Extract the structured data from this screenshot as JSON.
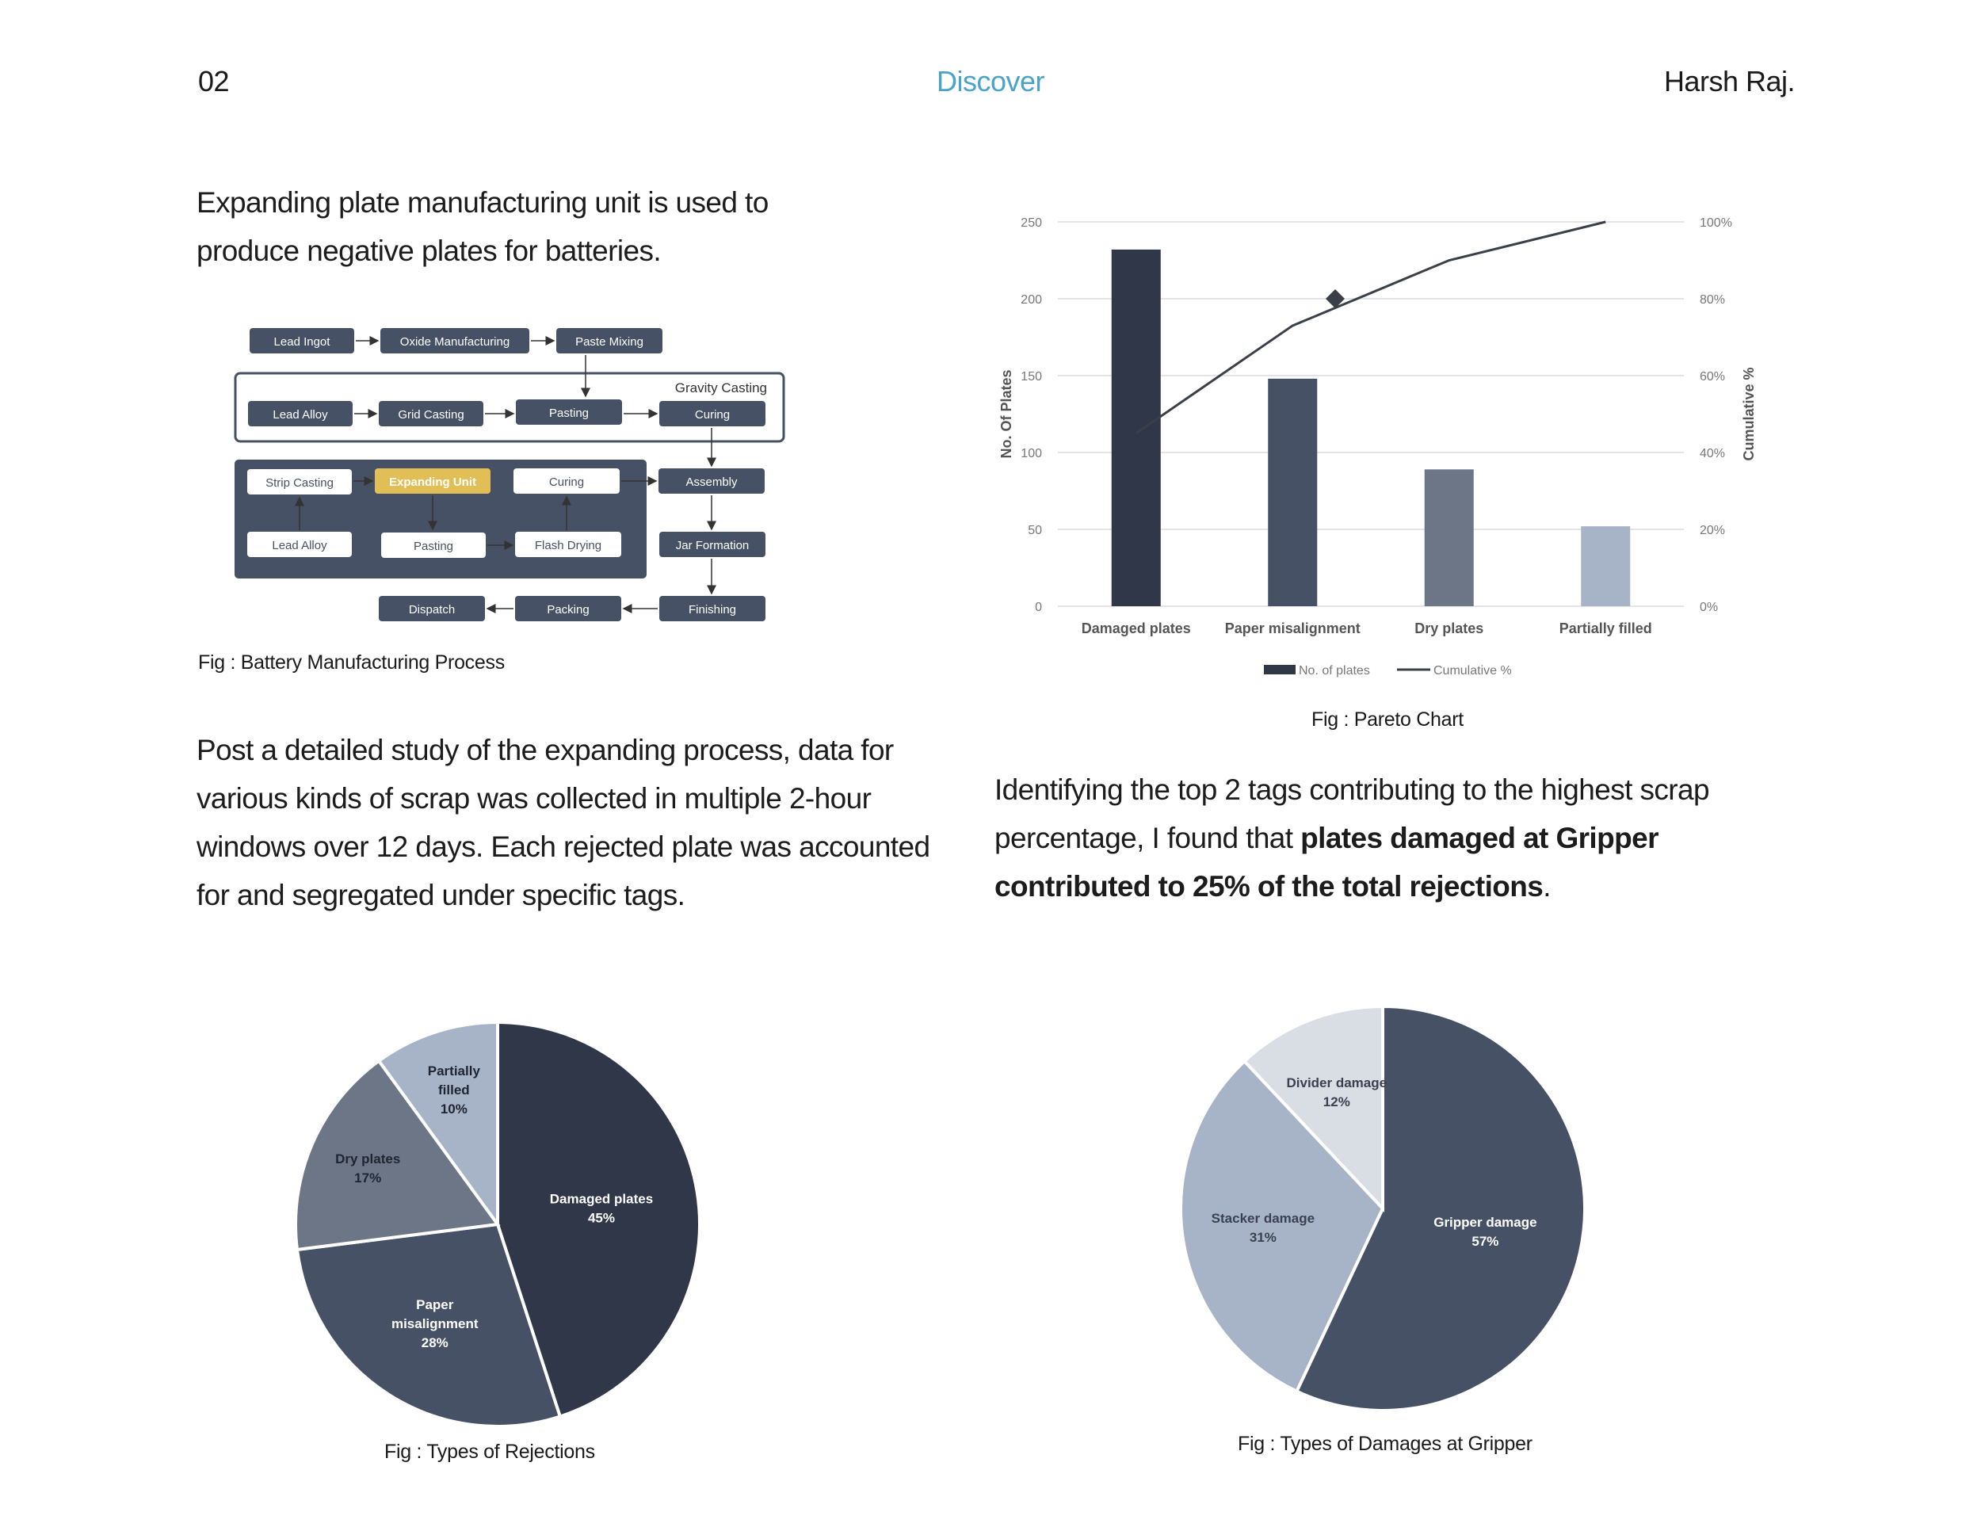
{
  "header": {
    "page_number": "02",
    "section": "Discover",
    "author": "Harsh Raj."
  },
  "intro": {
    "text": "Expanding plate manufacturing unit is used to produce negative plates for batteries."
  },
  "process_diagram": {
    "caption": "Fig : Battery Manufacturing Process",
    "group_label": "Gravity Casting",
    "nodes": {
      "lead_ingot": "Lead Ingot",
      "oxide_manufacturing": "Oxide Manufacturing",
      "paste_mixing": "Paste Mixing",
      "lead_alloy_top": "Lead Alloy",
      "grid_casting": "Grid Casting",
      "pasting_top": "Pasting",
      "curing_top": "Curing",
      "strip_casting": "Strip Casting",
      "expanding_unit": "Expanding Unit",
      "curing_mid": "Curing",
      "assembly": "Assembly",
      "lead_alloy_bottom": "Lead Alloy",
      "pasting_bottom": "Pasting",
      "flash_drying": "Flash Drying",
      "jar_formation": "Jar Formation",
      "dispatch": "Dispatch",
      "packing": "Packing",
      "finishing": "Finishing"
    }
  },
  "study": {
    "text": "Post a detailed study of the expanding process, data for various kinds of scrap was collected in multiple 2-hour windows over 12 days. Each rejected plate was accounted for and segregated under specific tags."
  },
  "finding": {
    "lead": "Identifying the top 2 tags contributing to the highest scrap percentage, I found that ",
    "bold": "plates damaged at Gripper contributed to 25% of the total rejections",
    "tail": "."
  },
  "colors": {
    "dark": "#2f3748",
    "mid_dark": "#465166",
    "mid": "#6d7687",
    "light": "#a7b4c8",
    "lighter": "#d9dde4",
    "accent": "#4aa3c8",
    "highlight": "#e2bf56"
  },
  "chart_data": [
    {
      "type": "bar",
      "caption": "Fig : Pareto Chart",
      "categories": [
        "Damaged plates",
        "Paper misalignment",
        "Dry plates",
        "Partially filled"
      ],
      "series": [
        {
          "name": "No. of plates",
          "values": [
            232,
            148,
            89,
            52
          ]
        },
        {
          "name": "Cumulative %",
          "values": [
            45,
            73,
            90,
            100
          ]
        }
      ],
      "ylabel": "No. Of Plates",
      "y2label": "Cumulative %",
      "ylim": [
        0,
        250
      ],
      "y_ticks": [
        "0",
        "50",
        "100",
        "150",
        "200",
        "250"
      ],
      "y2lim": [
        0,
        100
      ],
      "y2_ticks": [
        "0%",
        "20%",
        "40%",
        "60%",
        "80%",
        "100%"
      ],
      "marker_at": {
        "x": "Paper misalignment-Dry plates midpoint",
        "value": 80
      },
      "grid": true,
      "legend": "bottom"
    },
    {
      "type": "pie",
      "caption": "Fig :  Types of Rejections",
      "slices": [
        {
          "label": "Damaged plates",
          "value": 45,
          "pct": "45%"
        },
        {
          "label": "Paper misalignment",
          "value": 28,
          "pct": "28%"
        },
        {
          "label": "Dry plates",
          "value": 17,
          "pct": "17%"
        },
        {
          "label": "Partially filled",
          "value": 10,
          "pct": "10%"
        }
      ]
    },
    {
      "type": "pie",
      "caption": "Fig :  Types of Damages at Gripper",
      "slices": [
        {
          "label": "Gripper damage",
          "value": 57,
          "pct": "57%"
        },
        {
          "label": "Stacker damage",
          "value": 31,
          "pct": "31%"
        },
        {
          "label": "Divider damage",
          "value": 12,
          "pct": "12%"
        }
      ]
    }
  ]
}
